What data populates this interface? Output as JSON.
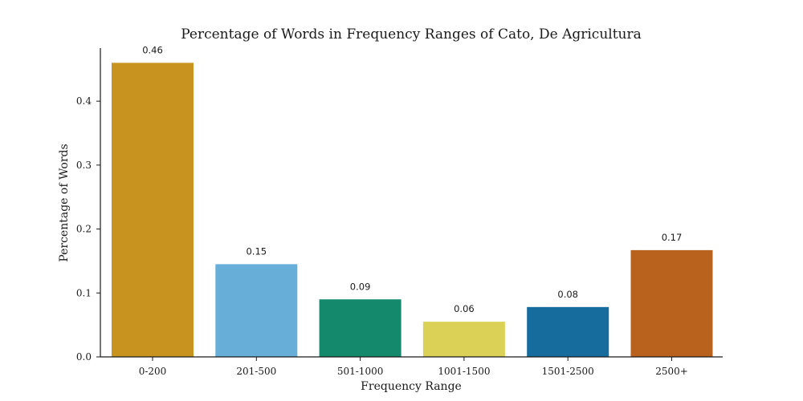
{
  "chart_data": {
    "type": "bar",
    "title": "Percentage of Words in Frequency Ranges of Cato, De Agricultura",
    "xlabel": "Frequency Range",
    "ylabel": "Percentage of Words",
    "categories": [
      "0-200",
      "201-500",
      "501-1000",
      "1001-1500",
      "1501-2500",
      "2500+"
    ],
    "values": [
      0.46,
      0.145,
      0.09,
      0.055,
      0.078,
      0.167
    ],
    "data_labels": [
      "0.46",
      "0.15",
      "0.09",
      "0.06",
      "0.08",
      "0.17"
    ],
    "colors": [
      "#c8941f",
      "#67afd8",
      "#14896c",
      "#dbd156",
      "#176c9e",
      "#b8621d"
    ],
    "ylim": [
      0,
      0.483
    ],
    "yticks": [
      0.0,
      0.1,
      0.2,
      0.3,
      0.4
    ],
    "ytick_labels": [
      "0.0",
      "0.1",
      "0.2",
      "0.3",
      "0.4"
    ],
    "grid": false,
    "legend": false
  }
}
